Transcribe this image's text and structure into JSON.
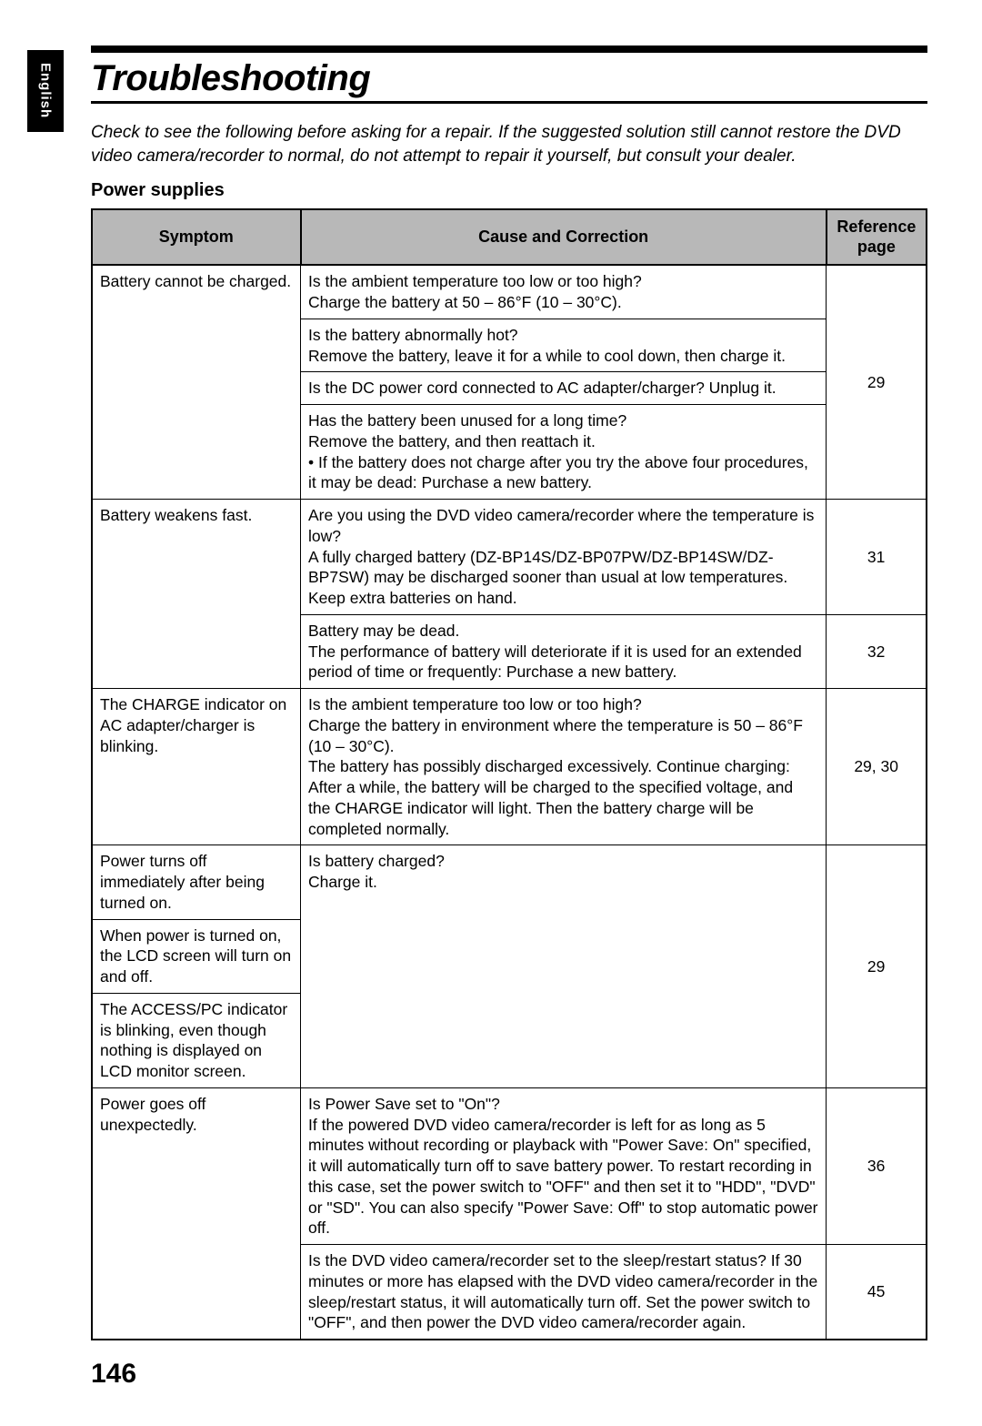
{
  "sideTab": "English",
  "title": "Troubleshooting",
  "intro": "Check to see the following before asking for a repair. If the suggested solution still cannot restore the DVD video camera/recorder to normal, do not attempt to repair it yourself, but consult your dealer.",
  "subhead": "Power supplies",
  "headers": {
    "symptom": "Symptom",
    "cause": "Cause and Correction",
    "ref": "Reference page"
  },
  "rows": {
    "r1": {
      "symptom": "Battery cannot be charged.",
      "c1": "Is the ambient temperature too low or too high?\nCharge the battery at 50 – 86°F (10 – 30°C).",
      "c2": "Is the battery abnormally hot?\nRemove the battery, leave it for a while to cool down, then charge it.",
      "c3": "Is the DC power cord connected to AC adapter/charger? Unplug it.",
      "c4": "Has the battery been unused for a long time?\nRemove the battery, and then reattach it.\n• If the battery does not charge after you try the above four procedures, it may be dead: Purchase a new battery.",
      "ref": "29"
    },
    "r2": {
      "symptom": "Battery weakens fast.",
      "c1": "Are you using the DVD video camera/recorder where the temperature is low?\nA fully charged battery (DZ-BP14S/DZ-BP07PW/DZ-BP14SW/DZ-BP7SW) may be discharged sooner than usual at low temperatures. Keep extra batteries on hand.",
      "c2": "Battery may be dead.\nThe performance of battery will deteriorate if it is used for an extended period of time or frequently: Purchase a new battery.",
      "ref1": "31",
      "ref2": "32"
    },
    "r3": {
      "symptom": "The CHARGE indicator on AC adapter/charger is blinking.",
      "c1": "Is the ambient temperature too low or too high?\nCharge the battery in environment where the temperature is 50 – 86°F (10 – 30°C).\nThe battery has possibly discharged excessively. Continue charging: After a while, the battery will be charged to the specified voltage, and the CHARGE indicator will light. Then the battery charge will be completed normally.",
      "ref": "29, 30"
    },
    "r4": {
      "s1": "Power turns off immediately after being turned on.",
      "s2": "When power is turned on, the LCD screen will turn on and off.",
      "s3": "The ACCESS/PC indicator is blinking, even though nothing is displayed on LCD monitor screen.",
      "c1": "Is battery charged?\nCharge it.",
      "ref": "29"
    },
    "r5": {
      "symptom": "Power goes off unexpectedly.",
      "c1": "Is Power Save set to \"On\"?\nIf the powered DVD video camera/recorder is left for as long as 5 minutes without recording or playback with \"Power Save: On\" specified, it will automatically turn off to save battery power. To restart recording in this case, set the power switch to \"OFF\" and then set it to \"HDD\", \"DVD\" or \"SD\". You can also specify \"Power Save: Off\" to stop automatic power off.",
      "c2": "Is the DVD video camera/recorder set to the sleep/restart status? If 30 minutes or more has elapsed with the DVD video camera/recorder in the sleep/restart status, it will automatically turn off. Set the power switch to \"OFF\", and then power the DVD video camera/recorder again.",
      "ref1": "36",
      "ref2": "45"
    }
  },
  "pageNumber": "146"
}
